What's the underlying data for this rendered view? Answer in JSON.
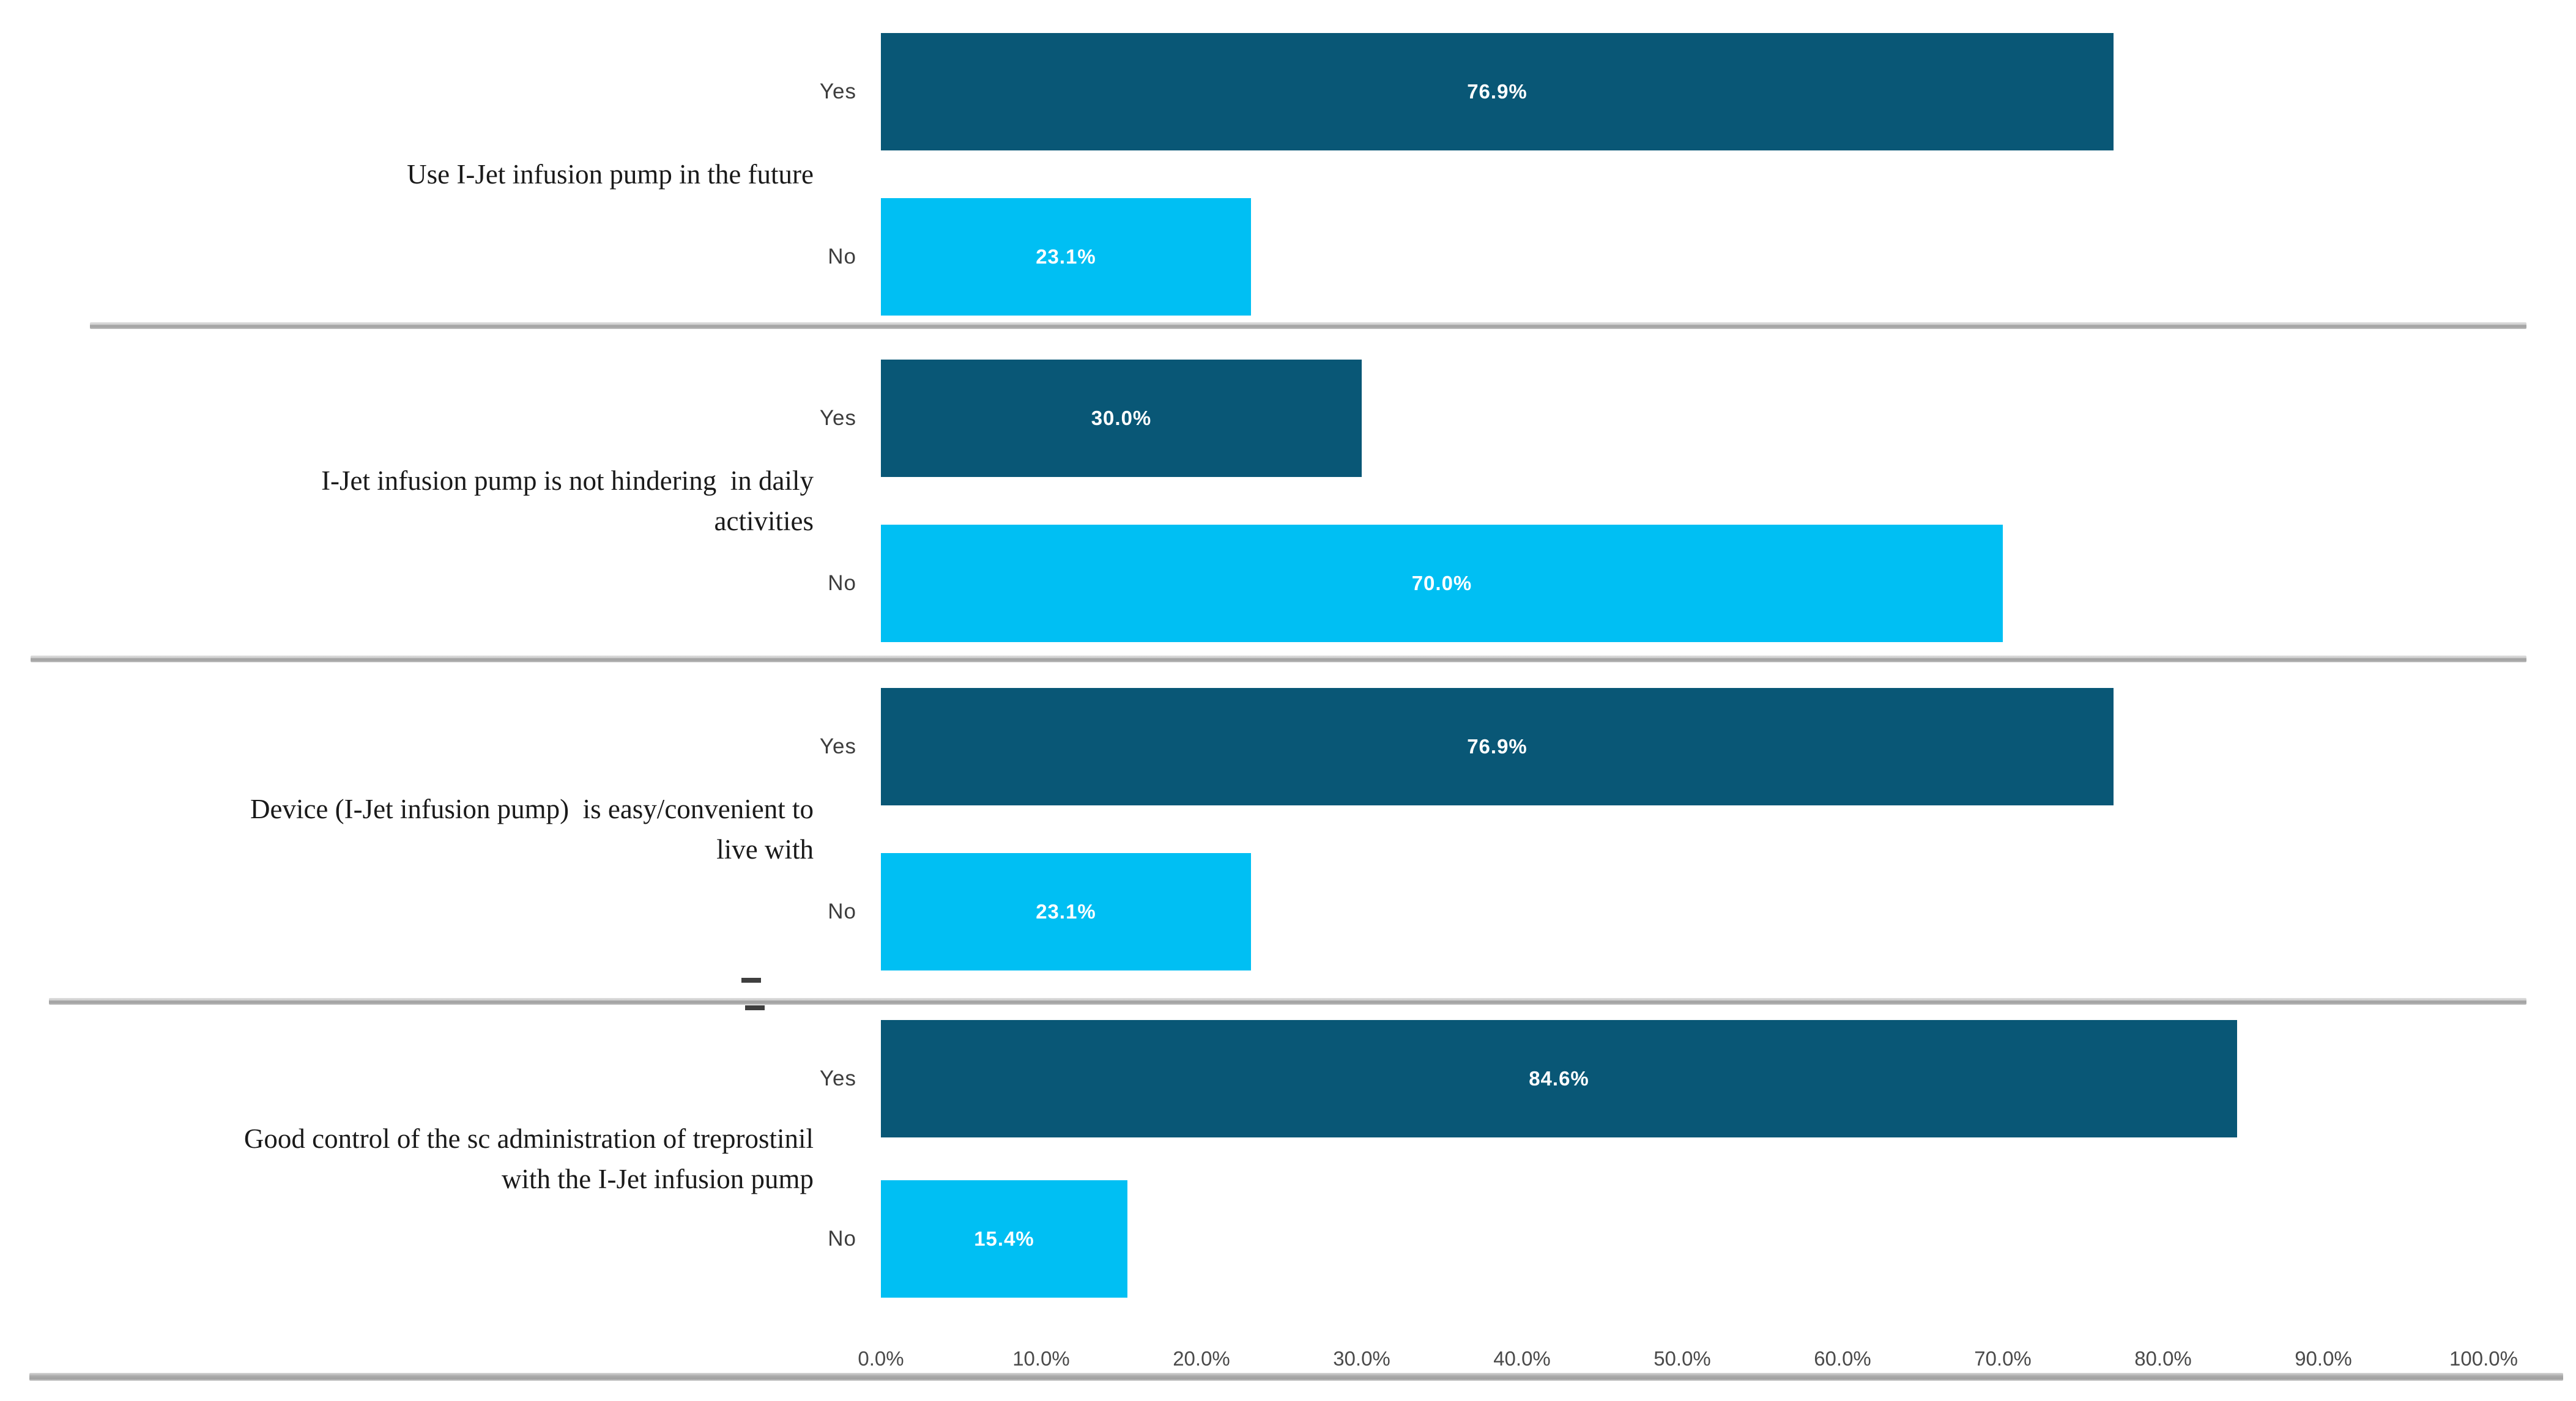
{
  "chart_data": {
    "type": "bar",
    "orientation": "horizontal",
    "title": "",
    "xlabel": "",
    "ylabel": "",
    "unit": "percent",
    "grid": false,
    "legend": "none",
    "axis": {
      "min": 0,
      "max": 100,
      "tick_step": 10,
      "tick_labels": [
        "0.0%",
        "10.0%",
        "20.0%",
        "30.0%",
        "40.0%",
        "50.0%",
        "60.0%",
        "70.0%",
        "80.0%",
        "90.0%",
        "100.0%"
      ]
    },
    "answer_labels": {
      "yes": "Yes",
      "no": "No"
    },
    "series_colors": {
      "yes": "#095776",
      "no": "#00BFF3"
    },
    "groups": [
      {
        "label": "Use I-Jet infusion pump in the future",
        "yes": 76.9,
        "no": 23.1,
        "yes_label": "76.9%",
        "no_label": "23.1%"
      },
      {
        "label": "I-Jet infusion pump is not hindering  in daily\nactivities",
        "yes": 30.0,
        "no": 70.0,
        "yes_label": "30.0%",
        "no_label": "70.0%"
      },
      {
        "label": "Device (I-Jet infusion pump)  is easy/convenient to\nlive with",
        "yes": 76.9,
        "no": 23.1,
        "yes_label": "76.9%",
        "no_label": "23.1%"
      },
      {
        "label": "Good control of the sc administration of treprostinil\nwith the I-Jet infusion pump",
        "yes": 84.6,
        "no": 15.4,
        "yes_label": "84.6%",
        "no_label": "15.4%"
      }
    ]
  }
}
